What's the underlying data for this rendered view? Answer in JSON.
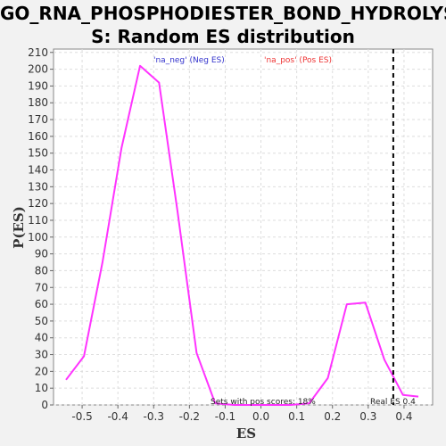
{
  "chart_data": {
    "type": "line",
    "title_line1": "GO_RNA_PHOSPHODIESTER_BOND_HYDROLYSI",
    "title_line2": "S: Random ES distribution",
    "xlabel": "ES",
    "ylabel": "P(ES)",
    "xlim": [
      -0.58,
      0.48
    ],
    "ylim": [
      0,
      212
    ],
    "x_ticks": [
      -0.5,
      -0.4,
      -0.3,
      -0.2,
      -0.1,
      0.0,
      0.1,
      0.2,
      0.3,
      0.4
    ],
    "x_tick_labels": [
      "-0.5",
      "-0.4",
      "-0.3",
      "-0.2",
      "-0.1",
      "0.0",
      "0.1",
      "0.2",
      "0.3",
      "0.4"
    ],
    "y_ticks": [
      0,
      10,
      20,
      30,
      40,
      50,
      60,
      70,
      80,
      90,
      100,
      110,
      120,
      130,
      140,
      150,
      160,
      170,
      180,
      190,
      200,
      210
    ],
    "grid": true,
    "series": [
      {
        "color": "#ff33ff",
        "x": [
          -0.545,
          -0.495,
          -0.443,
          -0.39,
          -0.338,
          -0.285,
          -0.233,
          -0.18,
          -0.128,
          -0.075,
          -0.023,
          0.03,
          0.082,
          0.135,
          0.187,
          0.24,
          0.292,
          0.345,
          0.397,
          0.44
        ],
        "y": [
          15,
          29,
          85,
          153,
          202,
          192,
          115,
          31,
          1,
          0,
          0,
          0,
          0,
          1,
          16,
          60,
          61,
          27,
          6,
          5
        ]
      }
    ],
    "legend": [
      {
        "label": "'na_neg' (Neg ES)",
        "color": "#3333cc"
      },
      {
        "label": "'na_pos' (Pos ES)",
        "color": "#ee3333"
      }
    ],
    "real_es": {
      "x": 0.37,
      "label": "Real ES 0.4"
    },
    "annotation": "Sets with pos scores: 18%"
  }
}
